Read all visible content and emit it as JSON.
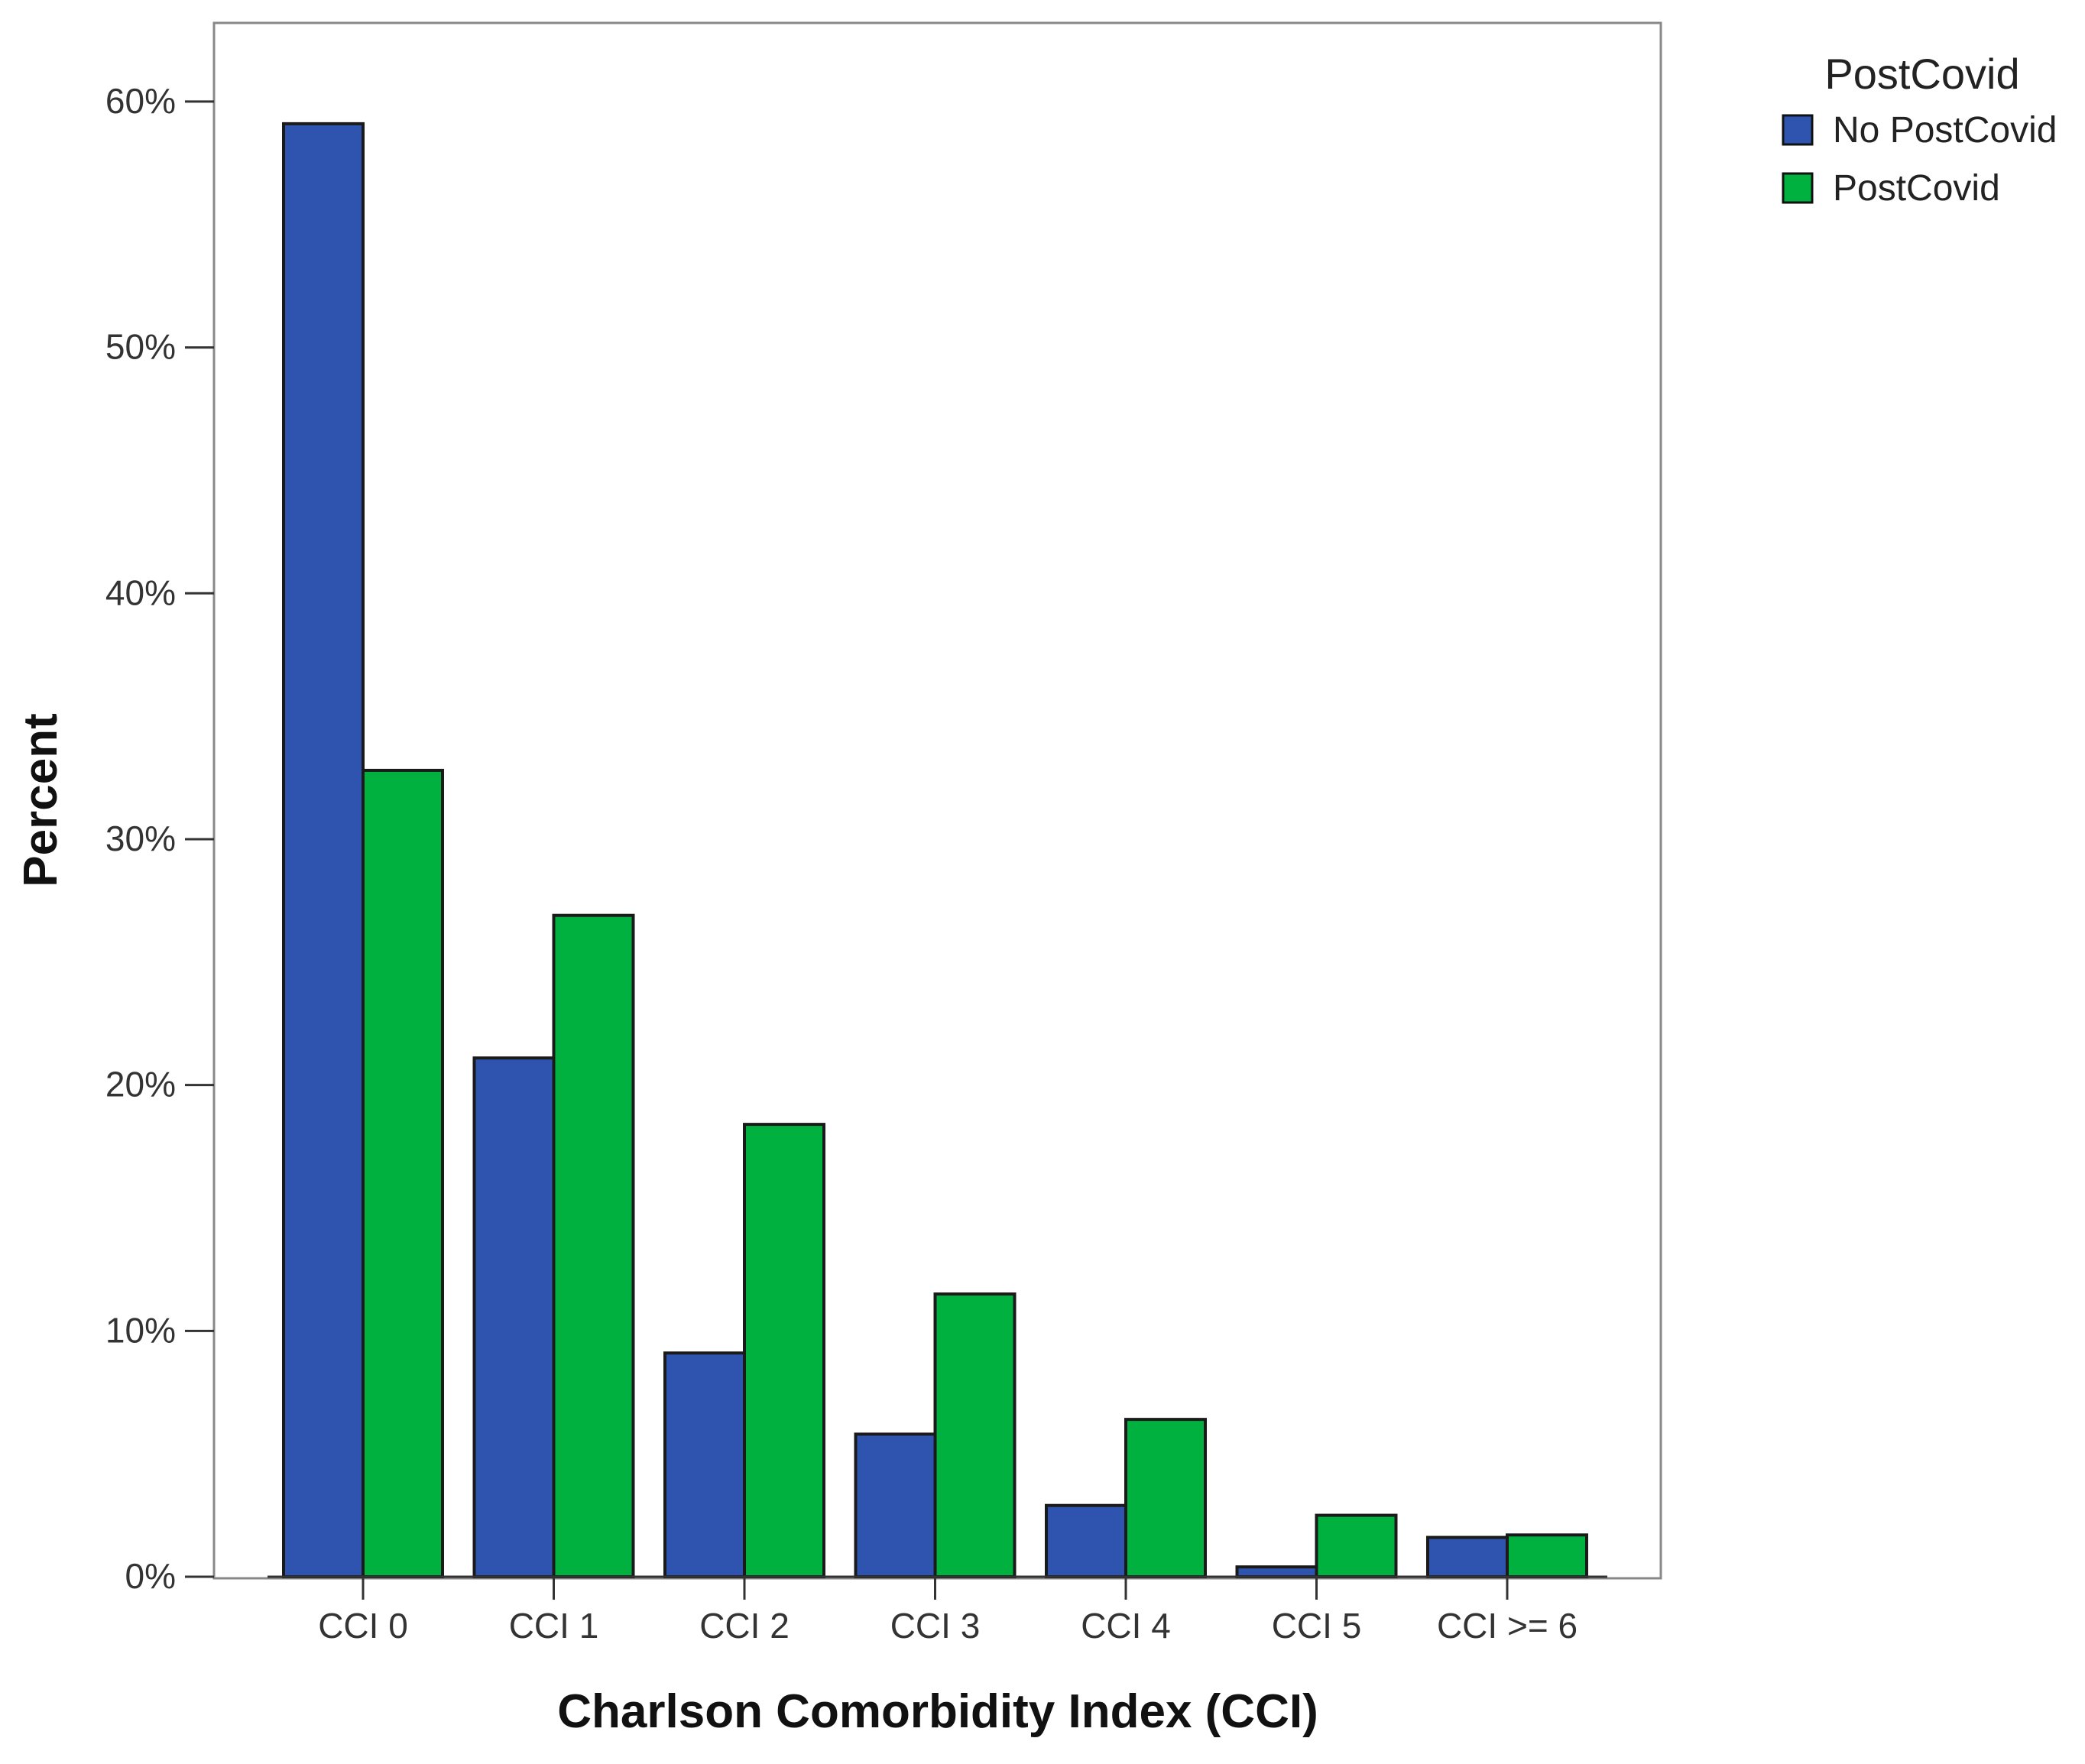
{
  "chart_data": {
    "type": "bar",
    "title": "",
    "xlabel": "Charlson Comorbidity Index (CCI)",
    "ylabel": "Percent",
    "categories": [
      "CCI 0",
      "CCI 1",
      "CCI 2",
      "CCI 3",
      "CCI 4",
      "CCI 5",
      "CCI >= 6"
    ],
    "series": [
      {
        "name": "No PostCovid",
        "color": "#2f54b0",
        "values": [
          59.1,
          21.1,
          9.1,
          5.8,
          2.9,
          0.4,
          1.6
        ]
      },
      {
        "name": "PostCovid",
        "color": "#00b140",
        "values": [
          32.8,
          26.9,
          18.4,
          11.5,
          6.4,
          2.5,
          1.7
        ]
      }
    ],
    "yticks": [
      0,
      10,
      20,
      30,
      40,
      50,
      60
    ],
    "ytick_labels": [
      "0%",
      "10%",
      "20%",
      "30%",
      "40%",
      "50%",
      "60%"
    ],
    "ylim": [
      0,
      63.2
    ],
    "grid": false,
    "legend": {
      "title": "PostCovid",
      "position": "top-right outside"
    }
  }
}
